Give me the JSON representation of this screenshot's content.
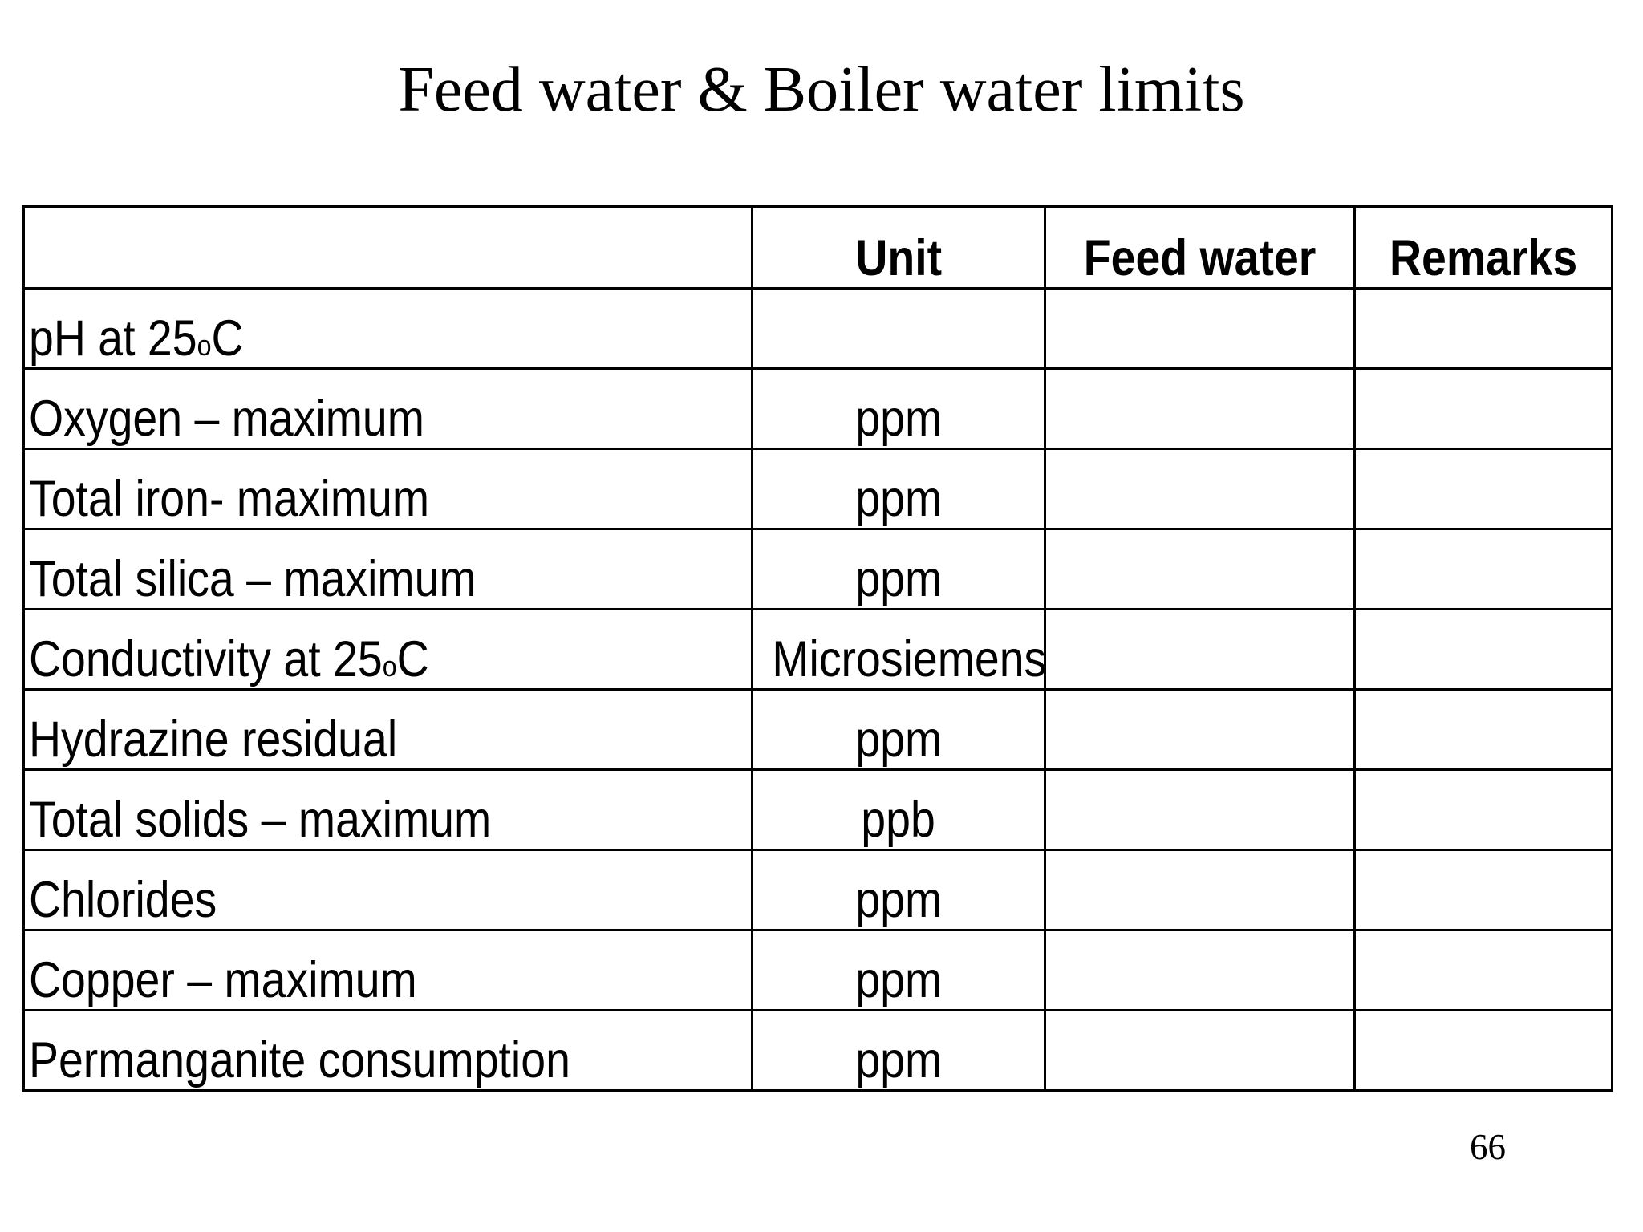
{
  "title": "Feed water & Boiler water limits",
  "page_number": "66",
  "colors": {
    "background": "#ffffff",
    "text": "#000000",
    "table_border": "#000000"
  },
  "table": {
    "headers": {
      "parameter": "",
      "unit": "Unit",
      "feed_water": "Feed water",
      "remarks": "Remarks"
    },
    "rows": [
      {
        "label": "pH at 25",
        "label_sup": "o",
        "label_end": "C",
        "unit": "",
        "feed_water": "",
        "remarks": ""
      },
      {
        "label": "Oxygen – maximum",
        "label_sup": "",
        "label_end": "",
        "unit": "ppm",
        "feed_water": "",
        "remarks": ""
      },
      {
        "label": "Total iron- maximum",
        "label_sup": "",
        "label_end": "",
        "unit": "ppm",
        "feed_water": "",
        "remarks": ""
      },
      {
        "label": "Total silica – maximum",
        "label_sup": "",
        "label_end": "",
        "unit": "ppm",
        "feed_water": "",
        "remarks": ""
      },
      {
        "label": "Conductivity at 25",
        "label_sup": "o",
        "label_end": "C",
        "unit": "Microsiemens",
        "feed_water": "",
        "remarks": ""
      },
      {
        "label": "Hydrazine residual",
        "label_sup": "",
        "label_end": "",
        "unit": "ppm",
        "feed_water": "",
        "remarks": ""
      },
      {
        "label": "Total solids – maximum",
        "label_sup": "",
        "label_end": "",
        "unit": "ppb",
        "feed_water": "",
        "remarks": ""
      },
      {
        "label": "Chlorides",
        "label_sup": "",
        "label_end": "",
        "unit": "ppm",
        "feed_water": "",
        "remarks": ""
      },
      {
        "label": "Copper – maximum",
        "label_sup": "",
        "label_end": "",
        "unit": "ppm",
        "feed_water": "",
        "remarks": ""
      },
      {
        "label": "Permanganite consumption",
        "label_sup": "",
        "label_end": "",
        "unit": "ppm",
        "feed_water": "",
        "remarks": ""
      }
    ]
  }
}
